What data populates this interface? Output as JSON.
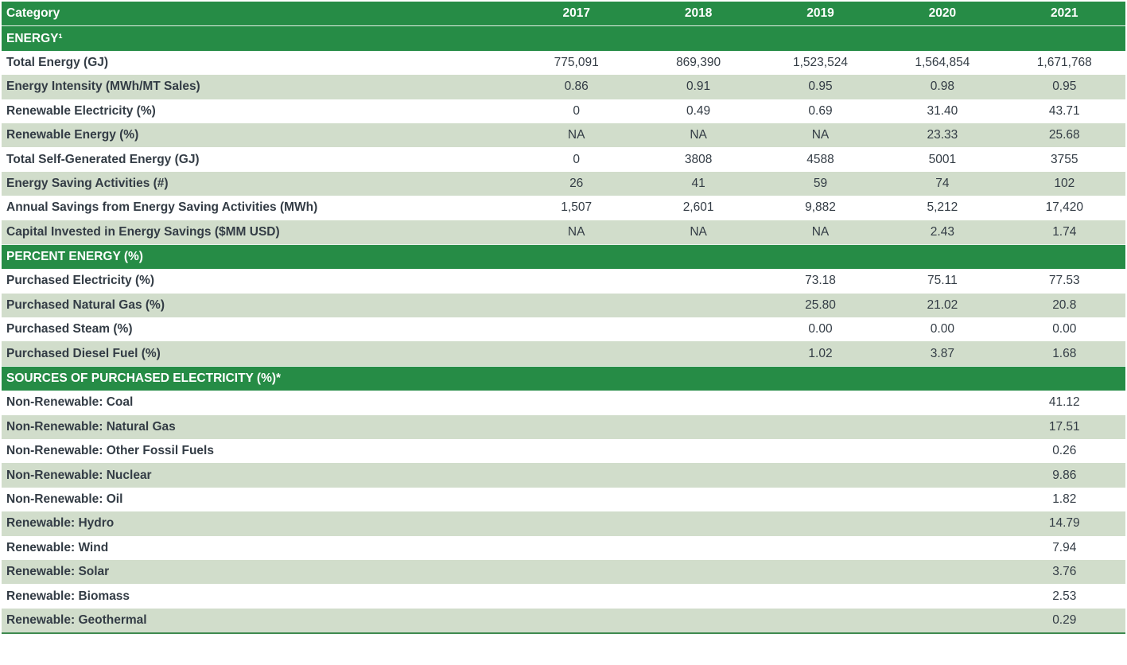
{
  "header": {
    "category": "Category",
    "years": [
      "2017",
      "2018",
      "2019",
      "2020",
      "2021"
    ]
  },
  "colors": {
    "section_green": "#268c46",
    "stripe": "#d1ddcb",
    "text": "#333c45"
  },
  "rows": [
    {
      "type": "section",
      "label": "ENERGY¹"
    },
    {
      "label": "Total Energy (GJ)",
      "values": [
        "775,091",
        "869,390",
        "1,523,524",
        "1,564,854",
        "1,671,768"
      ]
    },
    {
      "label": "Energy Intensity (MWh/MT Sales)",
      "values": [
        "0.86",
        "0.91",
        "0.95",
        "0.98",
        "0.95"
      ]
    },
    {
      "label": "Renewable Electricity (%)",
      "values": [
        "0",
        "0.49",
        "0.69",
        "31.40",
        "43.71"
      ]
    },
    {
      "label": "Renewable Energy (%)",
      "values": [
        "NA",
        "NA",
        "NA",
        "23.33",
        "25.68"
      ]
    },
    {
      "label": "Total Self-Generated Energy (GJ)",
      "values": [
        "0",
        "3808",
        "4588",
        "5001",
        "3755"
      ]
    },
    {
      "label": "Energy Saving Activities (#)",
      "values": [
        "26",
        "41",
        "59",
        "74",
        "102"
      ]
    },
    {
      "label": "Annual Savings from Energy Saving Activities (MWh)",
      "values": [
        "1,507",
        "2,601",
        "9,882",
        "5,212",
        "17,420"
      ]
    },
    {
      "label": "Capital Invested in Energy Savings ($MM USD)",
      "values": [
        "NA",
        "NA",
        "NA",
        "2.43",
        "1.74"
      ]
    },
    {
      "type": "section",
      "label": "PERCENT ENERGY (%)"
    },
    {
      "label": "Purchased Electricity (%)",
      "values": [
        "",
        "",
        "73.18",
        "75.11",
        "77.53"
      ]
    },
    {
      "label": "Purchased Natural Gas (%)",
      "values": [
        "",
        "",
        "25.80",
        "21.02",
        "20.8"
      ]
    },
    {
      "label": "Purchased Steam (%)",
      "values": [
        "",
        "",
        "0.00",
        "0.00",
        "0.00"
      ]
    },
    {
      "label": "Purchased Diesel Fuel (%)",
      "values": [
        "",
        "",
        "1.02",
        "3.87",
        "1.68"
      ]
    },
    {
      "type": "section",
      "label": "SOURCES OF PURCHASED ELECTRICITY (%)*"
    },
    {
      "label": "Non-Renewable: Coal",
      "values": [
        "",
        "",
        "",
        "",
        "41.12"
      ]
    },
    {
      "label": "Non-Renewable: Natural Gas",
      "values": [
        "",
        "",
        "",
        "",
        "17.51"
      ]
    },
    {
      "label": "Non-Renewable: Other Fossil Fuels",
      "values": [
        "",
        "",
        "",
        "",
        "0.26"
      ]
    },
    {
      "label": "Non-Renewable: Nuclear",
      "values": [
        "",
        "",
        "",
        "",
        "9.86"
      ]
    },
    {
      "label": "Non-Renewable: Oil",
      "values": [
        "",
        "",
        "",
        "",
        "1.82"
      ]
    },
    {
      "label": "Renewable: Hydro",
      "values": [
        "",
        "",
        "",
        "",
        "14.79"
      ]
    },
    {
      "label": "Renewable: Wind",
      "values": [
        "",
        "",
        "",
        "",
        "7.94"
      ]
    },
    {
      "label": "Renewable: Solar",
      "values": [
        "",
        "",
        "",
        "",
        "3.76"
      ]
    },
    {
      "label": "Renewable: Biomass",
      "values": [
        "",
        "",
        "",
        "",
        "2.53"
      ]
    },
    {
      "label": "Renewable: Geothermal",
      "values": [
        "",
        "",
        "",
        "",
        "0.29"
      ]
    }
  ]
}
